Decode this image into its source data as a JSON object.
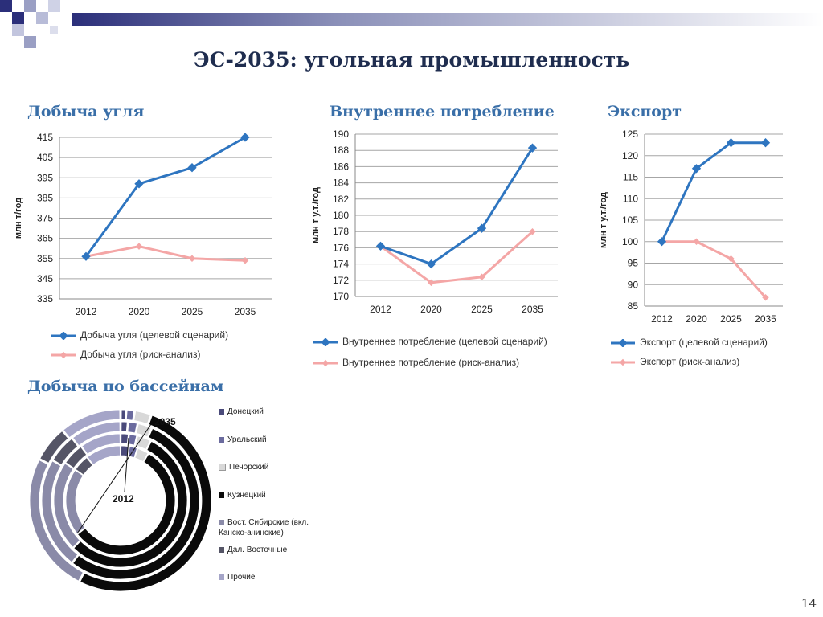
{
  "title": "ЭС-2035: угольная промышленность",
  "page_number": "14",
  "colors": {
    "target": "#2e75c0",
    "risk": "#f4a6a6",
    "title": "#1f2d4f",
    "section": "#3a6fa8"
  },
  "sections": {
    "production": "Добыча угля",
    "domestic": "Внутреннее потребление",
    "export": "Экспорт",
    "basins": "Добыча по бассейнам"
  },
  "chart_data": [
    {
      "type": "line",
      "title": "Добыча угля",
      "ylabel": "млн т/год",
      "categories": [
        "2012",
        "2020",
        "2025",
        "2035"
      ],
      "ylim": [
        335,
        415
      ],
      "yticks": [
        "335",
        "345",
        "355",
        "365",
        "375",
        "385",
        "395",
        "405",
        "415"
      ],
      "series": [
        {
          "name": "Добыча угля (целевой сценарий)",
          "values": [
            356,
            392,
            400,
            415
          ]
        },
        {
          "name": "Добыча угля (риск-анализ)",
          "values": [
            356,
            361,
            355,
            354
          ]
        }
      ]
    },
    {
      "type": "line",
      "title": "Внутреннее потребление",
      "ylabel": "млн т у.т./год",
      "categories": [
        "2012",
        "2020",
        "2025",
        "2035"
      ],
      "ylim": [
        170,
        190
      ],
      "yticks": [
        "170",
        "172",
        "174",
        "176",
        "178",
        "180",
        "182",
        "184",
        "186",
        "188",
        "190"
      ],
      "series": [
        {
          "name": "Внутреннее потребление (целевой сценарий)",
          "values": [
            176.2,
            174.0,
            178.4,
            188.3
          ]
        },
        {
          "name": "Внутреннее потребление (риск-анализ)",
          "values": [
            176.2,
            171.7,
            172.4,
            178.0
          ]
        }
      ]
    },
    {
      "type": "line",
      "title": "Экспорт",
      "ylabel": "млн т у.т./год",
      "categories": [
        "2012",
        "2020",
        "2025",
        "2035"
      ],
      "ylim": [
        85,
        125
      ],
      "yticks": [
        "85",
        "90",
        "95",
        "100",
        "105",
        "110",
        "115",
        "120",
        "125"
      ],
      "series": [
        {
          "name": "Экспорт (целевой сценарий)",
          "values": [
            100,
            117,
            123,
            123
          ]
        },
        {
          "name": "Экспорт (риск-анализ)",
          "values": [
            100,
            100,
            96,
            87
          ]
        }
      ]
    },
    {
      "type": "pie",
      "title": "Добыча по бассейнам",
      "labels": [
        "2035",
        "2012"
      ],
      "legend": [
        "Донецкий",
        "Уральский",
        "Печорский",
        "Кузнецкий",
        "Вост. Сибирские (вкл. Канско-ачинские)",
        "Дал. Восточные",
        "Прочие"
      ],
      "legend_colors": [
        "#4a4a7a",
        "#6b6b9e",
        "#d8d8d8",
        "#0a0a0a",
        "#8a8aa8",
        "#555566",
        "#a5a5c8"
      ],
      "rings": [
        {
          "label": "2012",
          "values": [
            2.5,
            2.5,
            3.5,
            56,
            20,
            5,
            10.5
          ]
        },
        {
          "label": "",
          "values": [
            2,
            2,
            3.5,
            55,
            22,
            5.5,
            10
          ]
        },
        {
          "label": "",
          "values": [
            1.5,
            2,
            3,
            54,
            23,
            6,
            10.5
          ]
        },
        {
          "label": "2035",
          "values": [
            1,
            1.5,
            3,
            52,
            25,
            6.5,
            11
          ]
        }
      ]
    }
  ]
}
